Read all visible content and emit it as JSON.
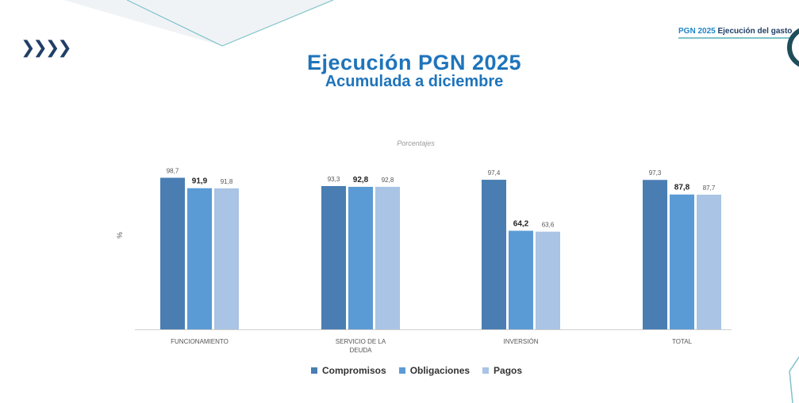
{
  "header": {
    "arrows": "❯❯❯❯",
    "badge_highlight": "PGN 2025",
    "badge_rest": " Ejecución del gasto"
  },
  "title": "Ejecución PGN 2025",
  "subtitle": "Acumulada a diciembre",
  "colors": {
    "Compromisos": "#4a7eb3",
    "Obligaciones": "#5b9bd5",
    "Pagos": "#a9c4e4",
    "title": "#1f74bb"
  },
  "chart_data": {
    "type": "bar",
    "subtitle": "Porcentajes",
    "ylabel": "%",
    "xlabel": "",
    "ylim": [
      0,
      100
    ],
    "categories": [
      "FUNCIONAMIENTO",
      "SERVICIO DE LA DEUDA",
      "INVERSIÓN",
      "TOTAL"
    ],
    "series": [
      {
        "name": "Compromisos",
        "values": [
          98.7,
          93.3,
          97.4,
          97.3
        ],
        "labels": [
          "98,7",
          "93,3",
          "97,4",
          "97,3"
        ]
      },
      {
        "name": "Obligaciones",
        "values": [
          91.9,
          92.8,
          64.2,
          87.8
        ],
        "labels": [
          "91,9",
          "92,8",
          "64,2",
          "87,8"
        ]
      },
      {
        "name": "Pagos",
        "values": [
          91.8,
          92.8,
          63.6,
          87.7
        ],
        "labels": [
          "91,8",
          "92,8",
          "63,6",
          "87,7"
        ]
      }
    ],
    "legend_position": "bottom",
    "grid": false
  }
}
